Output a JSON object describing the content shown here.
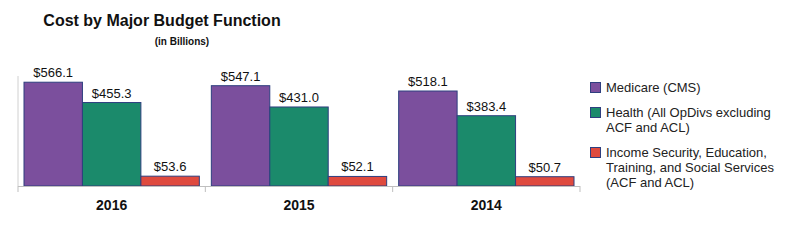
{
  "chart_data": {
    "type": "bar",
    "title": "Cost by Major Budget Function",
    "subtitle": "(in Billions)",
    "categories": [
      "2016",
      "2015",
      "2014"
    ],
    "series": [
      {
        "name": "Medicare (CMS)",
        "color": "#7b4f9d",
        "values": [
          566.1,
          547.1,
          518.1
        ],
        "value_labels": [
          "$566.1",
          "$547.1",
          "$518.1"
        ]
      },
      {
        "name": "Health (All OpDivs excluding ACF and ACL)",
        "color": "#1b8a6b",
        "values": [
          455.3,
          431.0,
          383.4
        ],
        "value_labels": [
          "$455.3",
          "$431.0",
          "$383.4"
        ]
      },
      {
        "name": "Income Security, Education, Training, and Social Services (ACF and ACL)",
        "color": "#df4a3e",
        "values": [
          53.6,
          52.1,
          50.7
        ],
        "value_labels": [
          "$53.6",
          "$52.1",
          "$50.7"
        ]
      }
    ],
    "ylim": [
      0,
      600
    ],
    "data_labels": true,
    "tick_labels": "x",
    "legend": "right",
    "grid": false
  }
}
